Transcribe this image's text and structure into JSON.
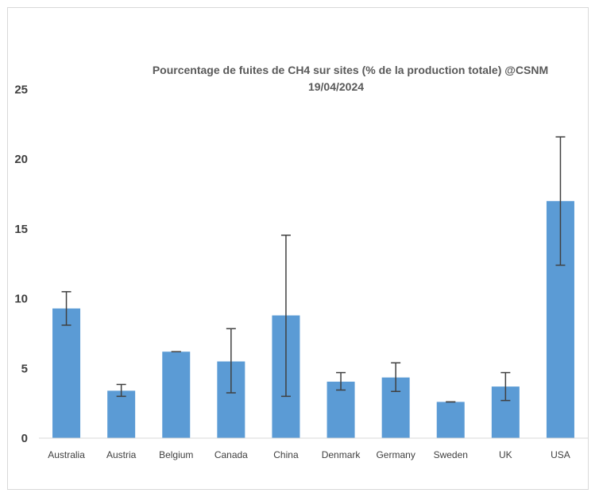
{
  "chart_data": {
    "type": "bar",
    "title": "Pourcentage de fuites de CH4 sur sites (% de la production totale) @CSNM",
    "subtitle": "19/04/2024",
    "xlabel": "",
    "ylabel": "",
    "categories": [
      "Australia",
      "Austria",
      "Belgium",
      "Canada",
      "China",
      "Denmark",
      "Germany",
      "Sweden",
      "UK",
      "USA"
    ],
    "values": [
      9.3,
      3.4,
      6.2,
      5.5,
      8.8,
      4.05,
      4.35,
      2.6,
      3.7,
      17.0
    ],
    "error_low": [
      8.1,
      3.0,
      6.2,
      3.25,
      3.0,
      3.45,
      3.35,
      2.6,
      2.7,
      12.4
    ],
    "error_high": [
      10.5,
      3.85,
      6.2,
      7.85,
      14.55,
      4.7,
      5.4,
      2.6,
      4.7,
      21.6
    ],
    "ylim": [
      0,
      25
    ],
    "yticks": [
      0,
      5,
      10,
      15,
      20,
      25
    ],
    "bar_color": "#5b9bd5",
    "error_bar_color": "#404040",
    "grid": false,
    "legend": "none"
  }
}
